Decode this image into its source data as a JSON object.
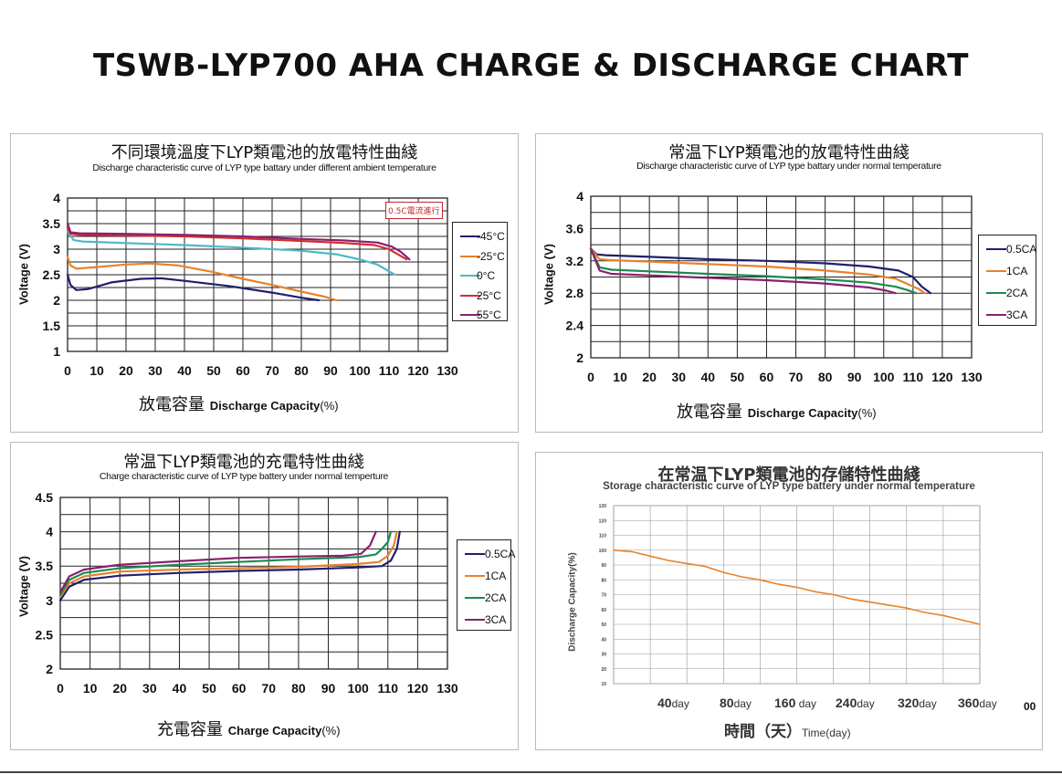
{
  "page": {
    "title": "TSWB-LYP700 AHA CHARGE & DISCHARGE CHART",
    "stray_text": "00"
  },
  "panels": {
    "p1": {
      "title_cn": "不同環境溫度下LYP類電池的放電特性曲綫",
      "title_en": "Discharge characteristic curve of LYP type battary under different ambient temperature",
      "xlabel_cn": "放電容量",
      "xlabel_en": "Discharge Capacity",
      "xlabel_unit": "(%)",
      "ylabel": "Voltage (V)",
      "annotation": "0.5C電流進行"
    },
    "p2": {
      "title_cn": "常温下LYP類電池的放電特性曲綫",
      "title_en": "Discharge characteristic curve of LYP  type battary under normal temperature",
      "xlabel_cn": "放電容量",
      "xlabel_en": "Discharge Capacity",
      "xlabel_unit": "(%)",
      "ylabel": "Voltage (V)"
    },
    "p3": {
      "title_cn": "常温下LYP類電池的充電特性曲綫",
      "title_en": "Charge characteristic curve of LYP type battery under normal temperture",
      "xlabel_cn": "充電容量",
      "xlabel_en": "Charge Capacity",
      "xlabel_unit": "(%)",
      "ylabel": "Voltage (V)"
    },
    "p4": {
      "title_cn": "在常温下LYP類電池的存儲特性曲綫",
      "title_en": "Storage characteristic curve of LYP type battery under normal temperature",
      "xlabel_cn": "時間（天）",
      "xlabel_en": "Time(day)",
      "ylabel": "Discharge Capacity(%)",
      "xticks": [
        {
          "n": "40",
          "u": "day"
        },
        {
          "n": "80",
          "u": "day"
        },
        {
          "n": "160",
          "u": " day"
        },
        {
          "n": "240",
          "u": "day"
        },
        {
          "n": "320",
          "u": "day"
        },
        {
          "n": "360",
          "u": "day"
        }
      ]
    }
  },
  "chart_data": [
    {
      "type": "line",
      "title": "不同環境溫度下LYP類電池的放電特性曲綫",
      "xlabel": "放電容量 Discharge Capacity(%)",
      "ylabel": "Voltage (V)",
      "xlim": [
        0,
        130
      ],
      "ylim": [
        1,
        4
      ],
      "xticks": [
        0,
        10,
        20,
        30,
        40,
        50,
        60,
        70,
        80,
        90,
        100,
        110,
        120,
        130
      ],
      "yticks": [
        1,
        1.5,
        2,
        2.5,
        3,
        3.5,
        4
      ],
      "grid": true,
      "legend": "right",
      "series": [
        {
          "name": "-45°C",
          "color": "#1f1f6e",
          "points": [
            [
              0,
              2.5
            ],
            [
              1,
              2.3
            ],
            [
              3,
              2.2
            ],
            [
              7,
              2.22
            ],
            [
              15,
              2.35
            ],
            [
              25,
              2.42
            ],
            [
              32,
              2.43
            ],
            [
              40,
              2.38
            ],
            [
              55,
              2.28
            ],
            [
              70,
              2.15
            ],
            [
              80,
              2.05
            ],
            [
              86,
              2.0
            ]
          ]
        },
        {
          "name": "-25°C",
          "color": "#e8822a",
          "points": [
            [
              0,
              2.85
            ],
            [
              1,
              2.68
            ],
            [
              3,
              2.62
            ],
            [
              10,
              2.65
            ],
            [
              20,
              2.7
            ],
            [
              28,
              2.72
            ],
            [
              38,
              2.68
            ],
            [
              50,
              2.55
            ],
            [
              60,
              2.42
            ],
            [
              70,
              2.3
            ],
            [
              80,
              2.17
            ],
            [
              88,
              2.07
            ],
            [
              92,
              2.0
            ]
          ]
        },
        {
          "name": "0°C",
          "color": "#4eb8c6",
          "points": [
            [
              0,
              3.35
            ],
            [
              2,
              3.18
            ],
            [
              5,
              3.15
            ],
            [
              20,
              3.12
            ],
            [
              40,
              3.08
            ],
            [
              60,
              3.03
            ],
            [
              80,
              2.97
            ],
            [
              92,
              2.9
            ],
            [
              100,
              2.8
            ],
            [
              106,
              2.7
            ],
            [
              112,
              2.5
            ]
          ]
        },
        {
          "name": "25°C",
          "color": "#d12f2f",
          "points": [
            [
              0,
              3.42
            ],
            [
              1,
              3.3
            ],
            [
              4,
              3.28
            ],
            [
              20,
              3.27
            ],
            [
              40,
              3.25
            ],
            [
              60,
              3.21
            ],
            [
              80,
              3.16
            ],
            [
              95,
              3.12
            ],
            [
              105,
              3.08
            ],
            [
              110,
              3.0
            ],
            [
              113,
              2.9
            ],
            [
              116,
              2.8
            ]
          ]
        },
        {
          "name": "55°C",
          "color": "#8a1f6e",
          "points": [
            [
              0,
              3.5
            ],
            [
              1,
              3.33
            ],
            [
              4,
              3.31
            ],
            [
              20,
              3.3
            ],
            [
              40,
              3.28
            ],
            [
              60,
              3.25
            ],
            [
              80,
              3.2
            ],
            [
              95,
              3.17
            ],
            [
              106,
              3.13
            ],
            [
              111,
              3.05
            ],
            [
              114,
              2.95
            ],
            [
              117,
              2.8
            ]
          ]
        }
      ]
    },
    {
      "type": "line",
      "title": "常温下LYP類電池的放電特性曲綫",
      "xlabel": "放電容量 Discharge Capacity(%)",
      "ylabel": "Voltage (V)",
      "xlim": [
        0,
        130
      ],
      "ylim": [
        2,
        4
      ],
      "xticks": [
        0,
        10,
        20,
        30,
        40,
        50,
        60,
        70,
        80,
        90,
        100,
        110,
        120,
        130
      ],
      "yticks": [
        2,
        2.4,
        2.8,
        3.2,
        3.6,
        4
      ],
      "grid": true,
      "legend": "right",
      "series": [
        {
          "name": "0.5CA",
          "color": "#1f1f6e",
          "points": [
            [
              0,
              3.35
            ],
            [
              2,
              3.28
            ],
            [
              5,
              3.27
            ],
            [
              20,
              3.25
            ],
            [
              40,
              3.22
            ],
            [
              60,
              3.2
            ],
            [
              80,
              3.17
            ],
            [
              95,
              3.13
            ],
            [
              105,
              3.08
            ],
            [
              110,
              3.0
            ],
            [
              113,
              2.88
            ],
            [
              116,
              2.8
            ]
          ]
        },
        {
          "name": "1CA",
          "color": "#e8822a",
          "points": [
            [
              0,
              3.35
            ],
            [
              3,
              3.22
            ],
            [
              6,
              3.21
            ],
            [
              20,
              3.19
            ],
            [
              40,
              3.16
            ],
            [
              60,
              3.13
            ],
            [
              80,
              3.08
            ],
            [
              95,
              3.03
            ],
            [
              104,
              2.98
            ],
            [
              109,
              2.9
            ],
            [
              112,
              2.85
            ],
            [
              114,
              2.8
            ]
          ]
        },
        {
          "name": "2CA",
          "color": "#1b8a4e",
          "points": [
            [
              0,
              3.35
            ],
            [
              3,
              3.12
            ],
            [
              7,
              3.09
            ],
            [
              20,
              3.07
            ],
            [
              40,
              3.04
            ],
            [
              60,
              3.01
            ],
            [
              80,
              2.97
            ],
            [
              95,
              2.93
            ],
            [
              104,
              2.88
            ],
            [
              108,
              2.84
            ],
            [
              111,
              2.8
            ]
          ]
        },
        {
          "name": "3CA",
          "color": "#8a1f6e",
          "points": [
            [
              0,
              3.35
            ],
            [
              3,
              3.08
            ],
            [
              7,
              3.04
            ],
            [
              20,
              3.02
            ],
            [
              40,
              2.99
            ],
            [
              60,
              2.96
            ],
            [
              80,
              2.92
            ],
            [
              95,
              2.87
            ],
            [
              101,
              2.83
            ],
            [
              104,
              2.8
            ]
          ]
        }
      ]
    },
    {
      "type": "line",
      "title": "常温下LYP類電池的充電特性曲綫",
      "xlabel": "充電容量 Charge Capacity(%)",
      "ylabel": "Voltage (V)",
      "xlim": [
        0,
        130
      ],
      "ylim": [
        2,
        4.5
      ],
      "xticks": [
        0,
        10,
        20,
        30,
        40,
        50,
        60,
        70,
        80,
        90,
        100,
        110,
        120,
        130
      ],
      "yticks": [
        2,
        2.5,
        3,
        3.5,
        4,
        4.5
      ],
      "grid": true,
      "legend": "right",
      "series": [
        {
          "name": "0.5CA",
          "color": "#1f1f6e",
          "points": [
            [
              0,
              3.0
            ],
            [
              3,
              3.2
            ],
            [
              8,
              3.3
            ],
            [
              20,
              3.36
            ],
            [
              40,
              3.4
            ],
            [
              60,
              3.43
            ],
            [
              80,
              3.45
            ],
            [
              100,
              3.48
            ],
            [
              108,
              3.5
            ],
            [
              111,
              3.58
            ],
            [
              113,
              3.75
            ],
            [
              114,
              4.0
            ]
          ]
        },
        {
          "name": "1CA",
          "color": "#e8822a",
          "points": [
            [
              0,
              3.05
            ],
            [
              3,
              3.25
            ],
            [
              8,
              3.35
            ],
            [
              20,
              3.42
            ],
            [
              40,
              3.45
            ],
            [
              60,
              3.47
            ],
            [
              80,
              3.49
            ],
            [
              100,
              3.53
            ],
            [
              107,
              3.56
            ],
            [
              110,
              3.65
            ],
            [
              112,
              3.8
            ],
            [
              113,
              4.0
            ]
          ]
        },
        {
          "name": "2CA",
          "color": "#1b8a4e",
          "points": [
            [
              0,
              3.08
            ],
            [
              3,
              3.3
            ],
            [
              8,
              3.4
            ],
            [
              20,
              3.47
            ],
            [
              40,
              3.52
            ],
            [
              60,
              3.56
            ],
            [
              80,
              3.6
            ],
            [
              100,
              3.63
            ],
            [
              106,
              3.67
            ],
            [
              108,
              3.75
            ],
            [
              110,
              3.85
            ],
            [
              111,
              4.0
            ]
          ]
        },
        {
          "name": "3CA",
          "color": "#8a1f6e",
          "points": [
            [
              0,
              3.12
            ],
            [
              3,
              3.35
            ],
            [
              8,
              3.45
            ],
            [
              20,
              3.52
            ],
            [
              40,
              3.57
            ],
            [
              60,
              3.62
            ],
            [
              80,
              3.64
            ],
            [
              95,
              3.65
            ],
            [
              101,
              3.68
            ],
            [
              104,
              3.8
            ],
            [
              106,
              4.0
            ]
          ]
        }
      ]
    },
    {
      "type": "line",
      "title": "在常温下LYP類電池的存儲特性曲綫",
      "xlabel": "時間（天） Time(day)",
      "ylabel": "Discharge Capacity(%)",
      "xlim": [
        0,
        400
      ],
      "ylim": [
        10,
        130
      ],
      "yticks": [
        10,
        20,
        30,
        40,
        50,
        60,
        70,
        80,
        90,
        100,
        110,
        120,
        130
      ],
      "grid": true,
      "series": [
        {
          "name": "",
          "color": "#e8822a",
          "points": [
            [
              0,
              100
            ],
            [
              20,
              99
            ],
            [
              40,
              96
            ],
            [
              60,
              93
            ],
            [
              80,
              91
            ],
            [
              100,
              89
            ],
            [
              120,
              85
            ],
            [
              140,
              82
            ],
            [
              160,
              80
            ],
            [
              180,
              77
            ],
            [
              200,
              75
            ],
            [
              220,
              72
            ],
            [
              240,
              70
            ],
            [
              260,
              67
            ],
            [
              280,
              65
            ],
            [
              300,
              63
            ],
            [
              320,
              61
            ],
            [
              340,
              58
            ],
            [
              360,
              56
            ],
            [
              380,
              53
            ],
            [
              400,
              50
            ]
          ]
        }
      ]
    }
  ]
}
